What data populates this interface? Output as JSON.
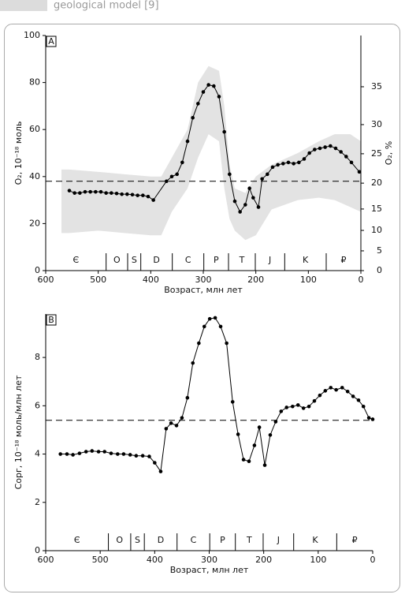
{
  "header": {
    "text": "geological model [9]"
  },
  "chart_data": [
    {
      "type": "line",
      "label": "A",
      "xlabel": "Возраст, млн лет",
      "ylabel": "O₂, 10⁻¹⁸ моль",
      "y2label": "O₂, %",
      "xlim": [
        600,
        0
      ],
      "xticks": [
        600,
        500,
        400,
        300,
        200,
        100,
        0
      ],
      "ylim": [
        0,
        100
      ],
      "yticks": [
        0,
        20,
        40,
        60,
        80,
        100
      ],
      "y2lim": [
        0,
        100
      ],
      "y2ticks": [
        0,
        {
          "value": 8.4,
          "label": "5"
        },
        {
          "value": 17.1,
          "label": "10"
        },
        {
          "value": 26.2,
          "label": "15"
        },
        {
          "value": 37.2,
          "label": "20"
        },
        {
          "value": 49.7,
          "label": "25"
        },
        {
          "value": 62.1,
          "label": "30"
        },
        {
          "value": 78.2,
          "label": "35"
        }
      ],
      "reference_line": 38,
      "periods": [
        "Є",
        "O",
        "S",
        "D",
        "C",
        "P",
        "T",
        "J",
        "K",
        "₽"
      ],
      "period_boundaries": [
        485,
        444,
        419,
        359,
        299,
        252,
        201,
        145,
        66
      ],
      "band": {
        "color": "#e3e3e3",
        "x": [
          570,
          555,
          500,
          450,
          400,
          380,
          370,
          360,
          330,
          310,
          290,
          270,
          260,
          250,
          240,
          220,
          200,
          170,
          120,
          80,
          50,
          20,
          0
        ],
        "upper": [
          43,
          43,
          42,
          41,
          40,
          40,
          44,
          48,
          60,
          80,
          87,
          85,
          70,
          45,
          35,
          33,
          40,
          45,
          50,
          55,
          58,
          58,
          55
        ],
        "lower": [
          16,
          16,
          17,
          16,
          15,
          15,
          20,
          25,
          35,
          48,
          58,
          55,
          35,
          22,
          17,
          13,
          15,
          26,
          30,
          31,
          30,
          27,
          25
        ]
      },
      "series": [
        {
          "color": "#000000",
          "x": [
            555,
            545,
            535,
            525,
            515,
            505,
            495,
            485,
            475,
            465,
            455,
            445,
            435,
            425,
            415,
            405,
            395,
            370,
            360,
            350,
            340,
            330,
            320,
            310,
            300,
            290,
            280,
            270,
            260,
            250,
            240,
            230,
            220,
            212,
            205,
            195,
            188,
            178,
            168,
            158,
            148,
            138,
            128,
            118,
            108,
            98,
            88,
            78,
            68,
            58,
            48,
            38,
            28,
            18,
            3
          ],
          "values": [
            34,
            33,
            33,
            33.5,
            33.5,
            33.5,
            33.5,
            33,
            33,
            32.8,
            32.5,
            32.5,
            32.3,
            32,
            32,
            31.5,
            30,
            38,
            40,
            41,
            46,
            55,
            65,
            71,
            76,
            79,
            78.5,
            74,
            59,
            41,
            29.5,
            25,
            28,
            35,
            31,
            27,
            39,
            41,
            44,
            45,
            45.5,
            46,
            45.5,
            46,
            47.5,
            50,
            51.5,
            52,
            52.5,
            53,
            52,
            50.5,
            48.5,
            46,
            42
          ]
        }
      ]
    },
    {
      "type": "line",
      "label": "B",
      "xlabel": "Возраст, млн лет",
      "ylabel": "Cорг, 10⁻¹⁸ моль/млн лет",
      "xlim": [
        600,
        0
      ],
      "xticks": [
        600,
        500,
        400,
        300,
        200,
        100,
        0
      ],
      "ylim": [
        0,
        9.8
      ],
      "yticks": [
        0,
        2,
        4,
        6,
        8
      ],
      "reference_line": 5.4,
      "periods": [
        "Є",
        "O",
        "S",
        "D",
        "C",
        "P",
        "T",
        "J",
        "K",
        "₽"
      ],
      "period_boundaries": [
        485,
        444,
        419,
        359,
        299,
        252,
        201,
        145,
        66
      ],
      "series": [
        {
          "color": "#000000",
          "x": [
            573,
            561,
            550,
            538,
            526,
            515,
            503,
            492,
            480,
            468,
            457,
            445,
            434,
            422,
            410,
            400,
            389,
            379,
            370,
            360,
            350,
            340,
            330,
            319,
            309,
            299,
            289,
            279,
            268,
            257,
            247,
            237,
            227,
            217,
            208,
            198,
            188,
            178,
            168,
            158,
            147,
            137,
            127,
            117,
            107,
            97,
            87,
            77,
            67,
            56,
            46,
            36,
            26,
            17,
            7,
            0
          ],
          "values": [
            4.0,
            4.0,
            3.97,
            4.03,
            4.1,
            4.13,
            4.1,
            4.1,
            4.03,
            4.0,
            4.0,
            3.97,
            3.93,
            3.93,
            3.9,
            3.64,
            3.28,
            5.05,
            5.28,
            5.18,
            5.5,
            6.33,
            7.77,
            8.59,
            9.28,
            9.6,
            9.64,
            9.28,
            8.59,
            6.16,
            4.82,
            3.77,
            3.7,
            4.36,
            5.11,
            3.54,
            4.79,
            5.34,
            5.77,
            5.93,
            5.97,
            6.03,
            5.9,
            5.97,
            6.2,
            6.43,
            6.62,
            6.75,
            6.66,
            6.75,
            6.59,
            6.39,
            6.23,
            5.97,
            5.5,
            5.44
          ]
        }
      ]
    }
  ]
}
